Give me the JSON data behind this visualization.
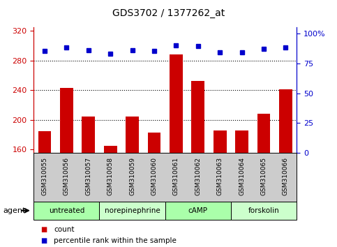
{
  "title": "GDS3702 / 1377262_at",
  "samples": [
    "GSM310055",
    "GSM310056",
    "GSM310057",
    "GSM310058",
    "GSM310059",
    "GSM310060",
    "GSM310061",
    "GSM310062",
    "GSM310063",
    "GSM310064",
    "GSM310065",
    "GSM310066"
  ],
  "counts": [
    185,
    243,
    204,
    165,
    204,
    183,
    288,
    252,
    186,
    186,
    208,
    241
  ],
  "percentiles": [
    85,
    88,
    86,
    83,
    86,
    85,
    90,
    89,
    84,
    84,
    87,
    88
  ],
  "groups": [
    {
      "label": "untreated",
      "start": 0,
      "end": 3,
      "color": "#aaffaa"
    },
    {
      "label": "norepinephrine",
      "start": 3,
      "end": 6,
      "color": "#ccffcc"
    },
    {
      "label": "cAMP",
      "start": 6,
      "end": 9,
      "color": "#aaffaa"
    },
    {
      "label": "forskolin",
      "start": 9,
      "end": 12,
      "color": "#ccffcc"
    }
  ],
  "ylim_left": [
    155,
    325
  ],
  "ylim_right": [
    0,
    105
  ],
  "yticks_left": [
    160,
    200,
    240,
    280,
    320
  ],
  "yticks_right": [
    0,
    25,
    50,
    75,
    100
  ],
  "bar_color": "#cc0000",
  "dot_color": "#0000cc",
  "title_fontsize": 10,
  "tick_color_left": "#cc0000",
  "tick_color_right": "#0000cc",
  "agent_label": "agent",
  "legend_count": "count",
  "legend_pct": "percentile rank within the sample",
  "xlim": [
    -0.5,
    11.5
  ],
  "bar_width": 0.6,
  "gray_bg": "#cccccc",
  "dot_size": 5
}
